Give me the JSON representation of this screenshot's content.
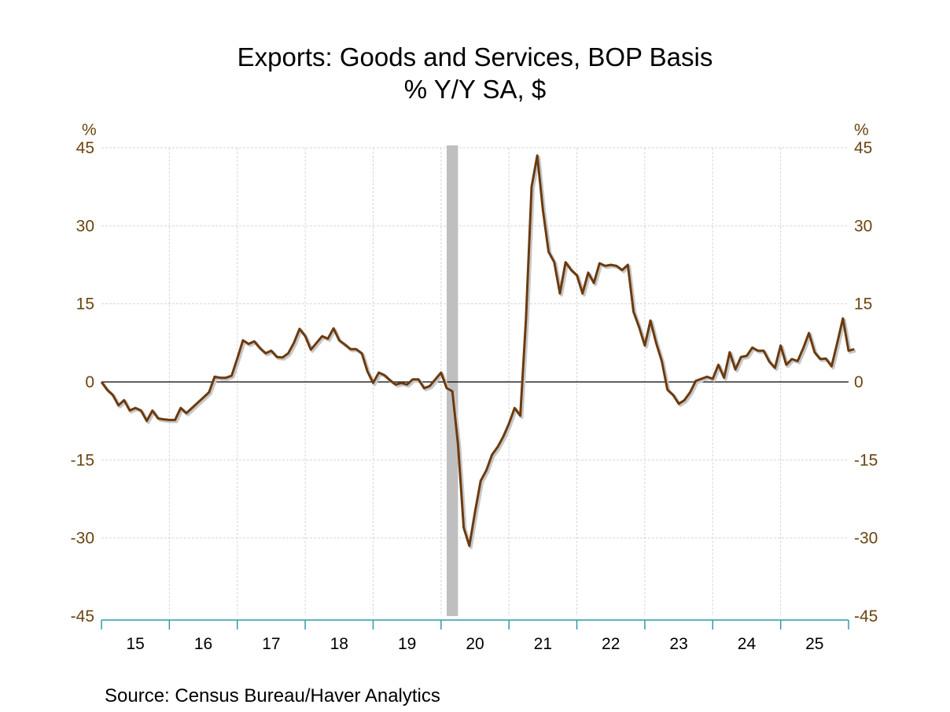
{
  "chart_data": {
    "type": "line",
    "title": "Exports: Goods and Services, BOP Basis",
    "subtitle": "% Y/Y   SA, $",
    "ylabel_left": "%",
    "ylabel_right": "%",
    "ylim": [
      -45,
      45
    ],
    "yticks": [
      45,
      30,
      15,
      0,
      -15,
      -30,
      -45
    ],
    "ytick_labels": [
      "45",
      "30",
      "15",
      "0",
      "-15",
      "-30",
      "-45"
    ],
    "xlim": [
      2015,
      2026
    ],
    "xtick_labels": [
      "15",
      "16",
      "17",
      "18",
      "19",
      "20",
      "21",
      "22",
      "23",
      "24",
      "25"
    ],
    "grid": true,
    "recession": {
      "start": 2020.083,
      "end": 2020.25
    },
    "line_color": "#6b3a0e",
    "source": "Source:  Census Bureau/Haver Analytics",
    "series": [
      {
        "name": "Exports: Goods and Services, BOP Basis % Y/Y",
        "start": "2015-01",
        "frequency": "monthly",
        "values": [
          0,
          -1.5,
          -2.5,
          -4.5,
          -3.5,
          -5.5,
          -5,
          -5.5,
          -7.5,
          -5.5,
          -7,
          -7.2,
          -7.3,
          -7.3,
          -5,
          -6,
          -5,
          -4,
          -3,
          -2,
          1,
          0.8,
          0.8,
          1.2,
          4.5,
          8,
          7.3,
          7.8,
          6.5,
          5.5,
          6,
          4.8,
          4.7,
          5.5,
          7.5,
          10.2,
          8.8,
          6.2,
          7.5,
          8.8,
          8.3,
          10.3,
          8,
          7.2,
          6.3,
          6.3,
          5.5,
          2,
          -0.2,
          1.8,
          1.3,
          0.3,
          -0.5,
          -0.2,
          -0.5,
          0.5,
          0.5,
          -1.2,
          -0.8,
          0.5,
          1.8,
          -1.2,
          -1.8,
          -12,
          -28,
          -31.5,
          -25,
          -19,
          -17,
          -14,
          -12.5,
          -10.5,
          -8,
          -5,
          -6.5,
          12,
          37.5,
          43.5,
          33,
          25,
          23,
          17,
          23,
          21.5,
          20.5,
          17,
          21,
          19,
          22.8,
          22.3,
          22.5,
          22.3,
          21.5,
          22.5,
          13.5,
          10.5,
          7,
          11.8,
          7.5,
          4,
          -1.5,
          -2.5,
          -4.2,
          -3.5,
          -2,
          0.2,
          0.6,
          1,
          0.6,
          3.3,
          0.8,
          5.7,
          2.4,
          4.8,
          5,
          6.6,
          6,
          6,
          3.9,
          2.7,
          7,
          3.3,
          4.4,
          4,
          6.5,
          9.4,
          5.7,
          4.4,
          4.5,
          3,
          7.5,
          12.2,
          6,
          6.3
        ]
      }
    ]
  }
}
